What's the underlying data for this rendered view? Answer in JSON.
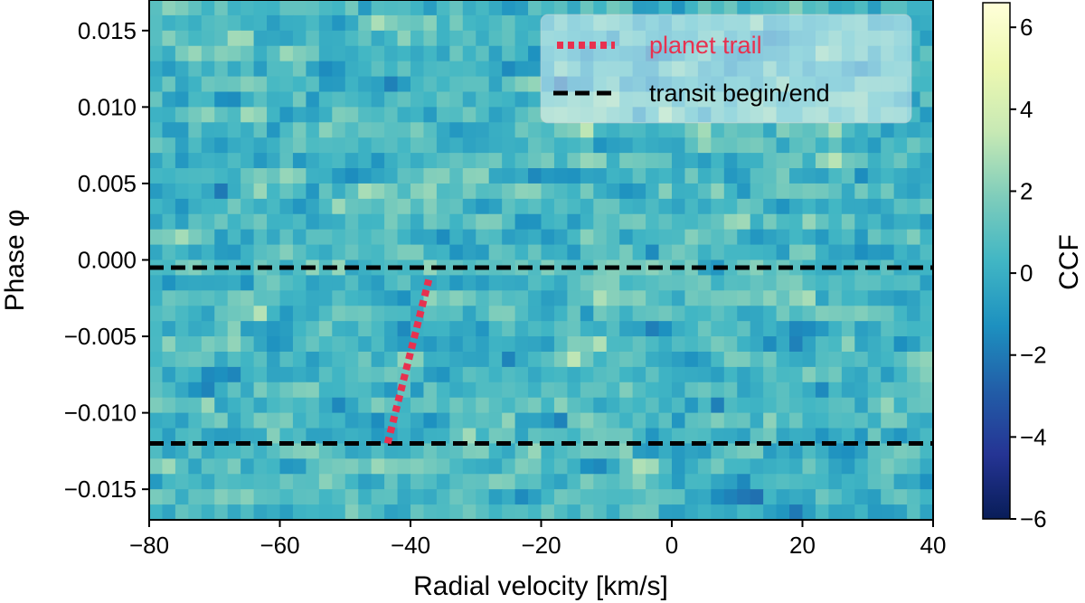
{
  "chart_data": {
    "type": "heatmap",
    "title": "",
    "xlabel": "Radial velocity [km/s]",
    "ylabel": "Phase φ",
    "xlim": [
      -80,
      40
    ],
    "ylim": [
      -0.017,
      0.017
    ],
    "x_ticks": [
      -80,
      -60,
      -40,
      -20,
      0,
      20,
      40
    ],
    "x_tick_labels": [
      "−80",
      "−60",
      "−40",
      "−20",
      "0",
      "20",
      "40"
    ],
    "y_ticks": [
      0.015,
      0.01,
      0.005,
      0.0,
      -0.005,
      -0.01,
      -0.015
    ],
    "y_tick_labels": [
      "0.015",
      "0.010",
      "0.005",
      "0.000",
      "−0.005",
      "−0.010",
      "−0.015"
    ],
    "colorbar": {
      "label": "CCF",
      "colormap": "YlGnBu_r",
      "range": [
        -6,
        6.6
      ],
      "ticks": [
        6,
        4,
        2,
        0,
        -2,
        -4,
        -6
      ],
      "tick_labels": [
        "6",
        "4",
        "2",
        "0",
        "−2",
        "−4",
        "−6"
      ]
    },
    "grid": false,
    "legend_position": "top-right",
    "series": [
      {
        "name": "planet trail",
        "style": "dotted",
        "color": "#e8314f",
        "x": [
          -43.5,
          -37.2
        ],
        "y": [
          -0.012,
          -0.0013
        ]
      },
      {
        "name": "transit begin/end",
        "style": "dashed",
        "color": "#000000",
        "y_values": [
          -0.0005,
          -0.012
        ]
      }
    ],
    "heatmap": {
      "n_velocity_bins": 60,
      "n_phase_rows": 34,
      "value_range": [
        -5,
        6
      ],
      "typical_range": [
        -2,
        3
      ]
    }
  }
}
